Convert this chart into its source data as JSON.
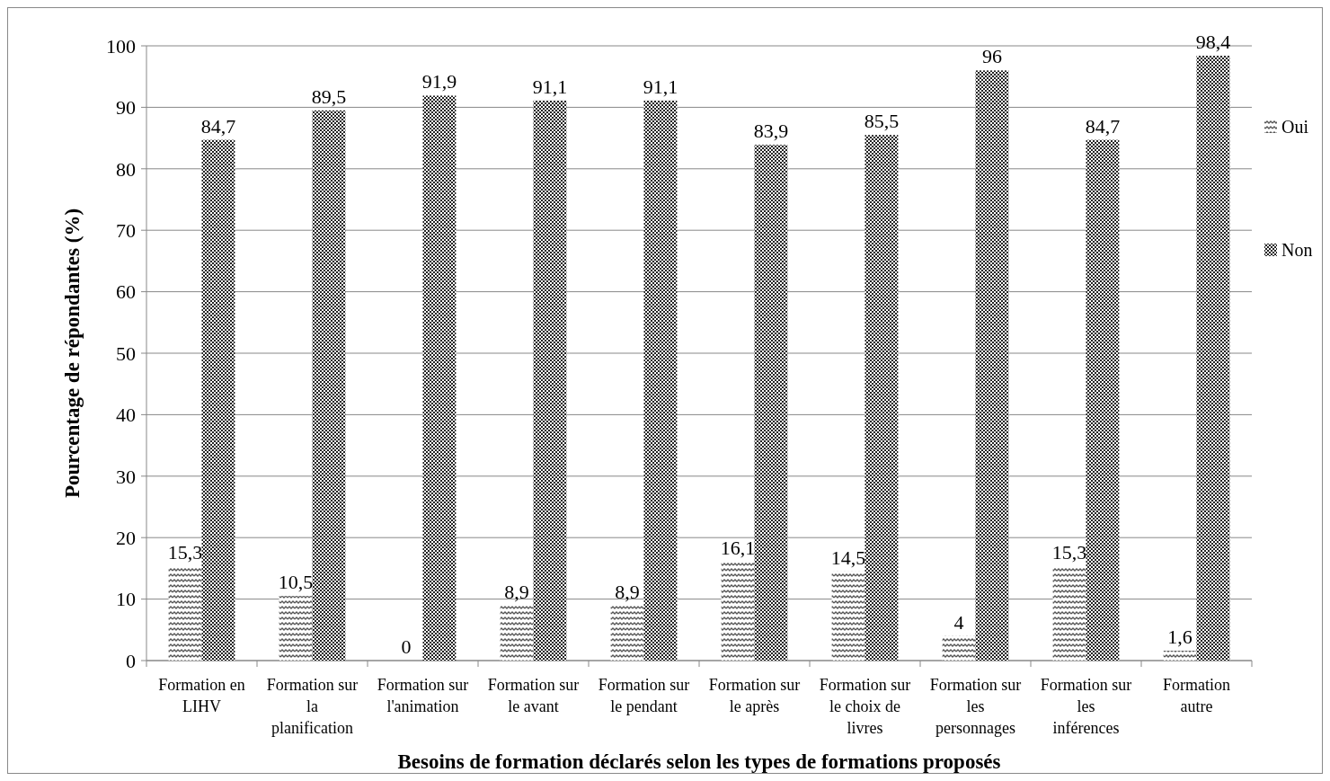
{
  "chart_data": {
    "type": "bar",
    "xlabel": "Besoins de formation déclarés selon les types de formations proposés",
    "ylabel": "Pourcentage de répondantes (%)",
    "categories": [
      "Formation en LIHV",
      "Formation sur la planification",
      "Formation sur l'animation",
      "Formation sur le avant",
      "Formation sur le pendant",
      "Formation sur le après",
      "Formation sur le choix de livres",
      "Formation sur les personnages",
      "Formation sur les inférences",
      "Formation autre"
    ],
    "series": [
      {
        "name": "Oui",
        "color": "#555555",
        "values": [
          15.3,
          10.5,
          0,
          8.9,
          8.9,
          16.1,
          14.5,
          4,
          15.3,
          1.6
        ],
        "value_labels": [
          "15,3",
          "10,5",
          "0",
          "8,9",
          "8,9",
          "16,1",
          "14,5",
          "4",
          "15,3",
          "1,6"
        ]
      },
      {
        "name": "Non",
        "color": "#222222",
        "values": [
          84.7,
          89.5,
          91.9,
          91.1,
          91.1,
          83.9,
          85.5,
          96,
          84.7,
          98.4
        ],
        "value_labels": [
          "84,7",
          "89,5",
          "91,9",
          "91,1",
          "91,1",
          "83,9",
          "85,5",
          "96",
          "84,7",
          "98,4"
        ]
      }
    ],
    "ylim": [
      0,
      100
    ],
    "yticks": [
      0,
      10,
      20,
      30,
      40,
      50,
      60,
      70,
      80,
      90,
      100
    ],
    "grid": "y",
    "legend": "right"
  }
}
